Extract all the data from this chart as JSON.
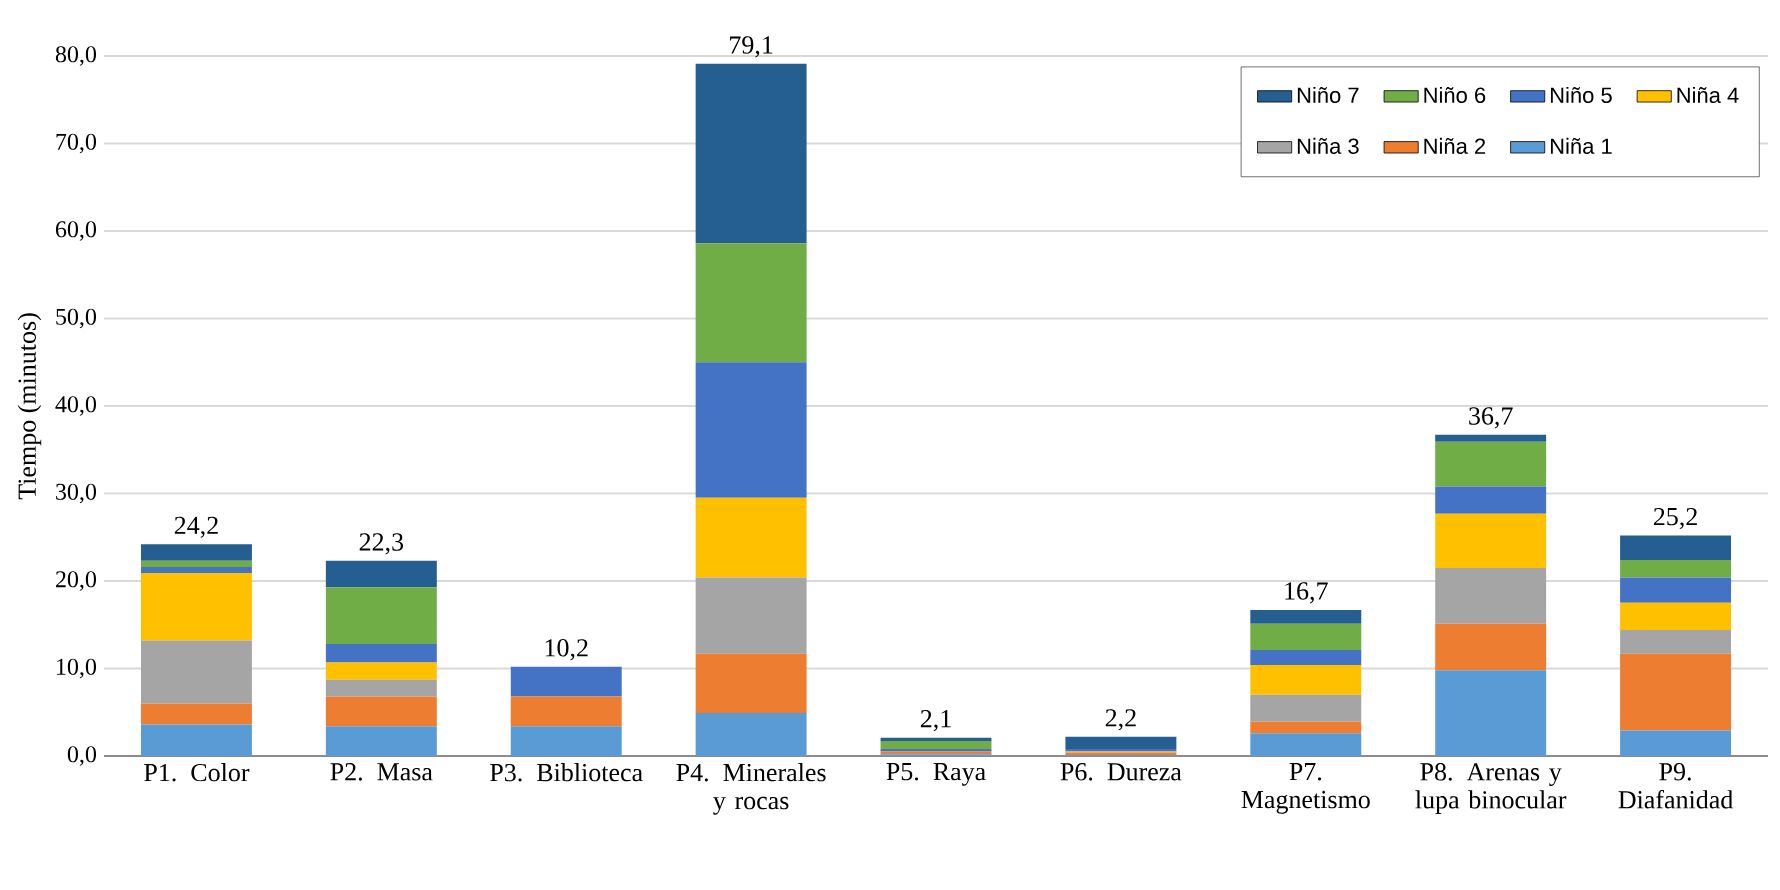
{
  "chart_data": {
    "type": "bar",
    "stacked": true,
    "ylabel": "Tiempo (minutos)",
    "categories": [
      "P1. Color",
      "P2. Masa",
      "P3. Biblioteca",
      "P4. Minerales y rocas",
      "P5. Raya",
      "P6. Dureza",
      "P7. Magnetismo",
      "P8. Arenas y lupa binocular",
      "P9. Diafanidad"
    ],
    "series": [
      {
        "name": "Niña 1",
        "color": "#5b9bd5",
        "values": [
          3.6,
          3.4,
          3.4,
          4.9,
          0.2,
          0.1,
          2.6,
          9.8,
          2.9
        ]
      },
      {
        "name": "Niña 2",
        "color": "#ed7d31",
        "values": [
          2.4,
          3.4,
          3.4,
          6.8,
          0.3,
          0.3,
          1.3,
          5.3,
          8.8
        ]
      },
      {
        "name": "Niña 3",
        "color": "#a5a5a5",
        "values": [
          7.2,
          1.9,
          0,
          8.7,
          null,
          0,
          3.1,
          6.4,
          2.7
        ]
      },
      {
        "name": "Niña 4",
        "color": "#ffc000",
        "values": [
          7.7,
          2.0,
          0,
          9.1,
          0,
          0.1,
          3.4,
          6.2,
          3.1
        ]
      },
      {
        "name": "Niño 5",
        "color": "#4472c4",
        "values": [
          0.7,
          2.1,
          3.4,
          15.5,
          0.3,
          0.3,
          1.7,
          3.1,
          2.9
        ]
      },
      {
        "name": "Niño 6",
        "color": "#70ad47",
        "values": [
          0.7,
          6.5,
          0,
          13.6,
          0.9,
          0,
          3.0,
          5.1,
          2.0
        ]
      },
      {
        "name": "Niño 7",
        "color": "#255e91",
        "values": [
          1.9,
          3.0,
          0,
          20.5,
          0.4,
          1.4,
          1.6,
          0.8,
          2.8
        ]
      }
    ],
    "totals": [
      "24,2",
      "22,3",
      "10,2",
      "79,1",
      "2,1",
      "2,2",
      "16,7",
      "36,7",
      "25,2"
    ],
    "ylim": [
      0,
      80
    ],
    "yticks": [
      {
        "value": 0,
        "label": "0,0"
      },
      {
        "value": 10,
        "label": "10,0"
      },
      {
        "value": 20,
        "label": "20,0"
      },
      {
        "value": 30,
        "label": "30,0"
      },
      {
        "value": 40,
        "label": "40,0"
      },
      {
        "value": 50,
        "label": "50,0"
      },
      {
        "value": 60,
        "label": "60,0"
      },
      {
        "value": 70,
        "label": "70,0"
      },
      {
        "value": 80,
        "label": "80,0"
      }
    ],
    "grid": "y",
    "legend": "top right"
  }
}
